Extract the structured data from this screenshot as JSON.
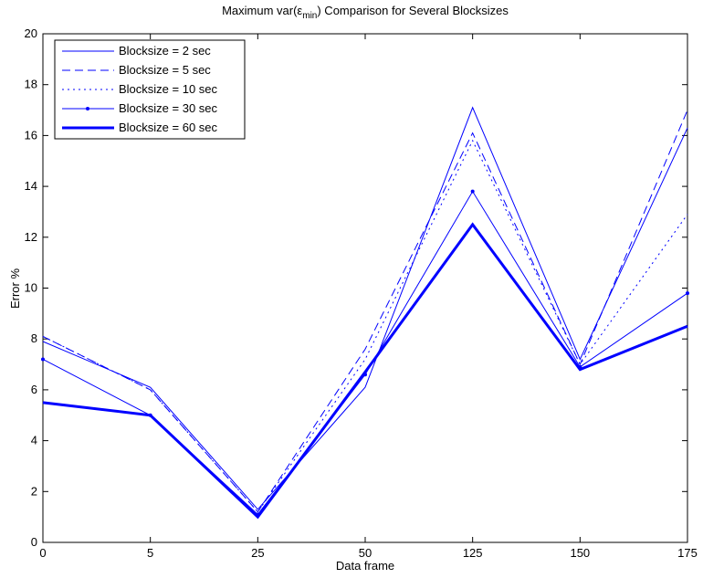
{
  "chart_data": {
    "type": "line",
    "title": [
      "Maximum var(ε",
      "min",
      ") Comparison for Several Blocksizes"
    ],
    "x_label": "Data frame",
    "y_label": "Error %",
    "categories": [
      "0",
      "5",
      "25",
      "50",
      "125",
      "150",
      "175"
    ],
    "ylim": [
      0,
      20
    ],
    "yticks": [
      0,
      2,
      4,
      6,
      8,
      10,
      12,
      14,
      16,
      18,
      20
    ],
    "grid": false,
    "legend": "upper-left",
    "series": [
      {
        "name": "Blocksize = 2 sec",
        "color": "#0000ff",
        "linestyle": "solid",
        "linewidth": 1,
        "marker": false,
        "values": [
          7.9,
          6.1,
          1.3,
          6.1,
          17.1,
          7.2,
          16.3
        ]
      },
      {
        "name": "Blocksize = 5 sec",
        "color": "#0000ff",
        "linestyle": "dashed",
        "linewidth": 1,
        "marker": false,
        "values": [
          8.1,
          6.0,
          1.2,
          7.6,
          16.1,
          7.0,
          17.0
        ]
      },
      {
        "name": "Blocksize = 10 sec",
        "color": "#0000ff",
        "linestyle": "dotted",
        "linewidth": 1,
        "marker": false,
        "values": [
          8.1,
          6.0,
          1.2,
          7.2,
          15.8,
          7.0,
          12.9
        ]
      },
      {
        "name": "Blocksize = 30 sec",
        "color": "#0000ff",
        "linestyle": "solid",
        "linewidth": 1,
        "marker": true,
        "values": [
          7.2,
          5.0,
          1.1,
          6.6,
          13.8,
          6.9,
          9.8
        ]
      },
      {
        "name": "Blocksize = 60 sec",
        "color": "#0000ff",
        "linestyle": "solid",
        "linewidth": 3,
        "marker": false,
        "values": [
          5.5,
          5.0,
          1.0,
          6.7,
          12.5,
          6.8,
          8.5
        ]
      }
    ]
  }
}
